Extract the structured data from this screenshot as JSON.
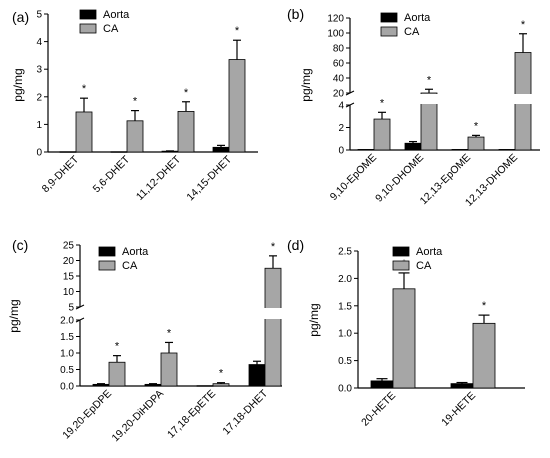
{
  "colors": {
    "aorta": "#000000",
    "ca": "#a6a6a6",
    "axis": "#000000"
  },
  "chart_data": [
    {
      "panel_label": "(a)",
      "type": "bar",
      "categories": [
        "8,9-DHET",
        "5,6-DHET",
        "11,12-DHET",
        "14,15-DHET"
      ],
      "ylabel": "pg/mg",
      "ylim": [
        0,
        5
      ],
      "yticks": [
        "0",
        "1",
        "2",
        "3",
        "4",
        "5"
      ],
      "series": [
        {
          "name": "Aorta",
          "values": [
            0.01,
            0.01,
            0.03,
            0.17
          ],
          "errors": [
            0.0,
            0.0,
            0.01,
            0.07
          ]
        },
        {
          "name": "CA",
          "values": [
            1.45,
            1.13,
            1.47,
            3.35
          ],
          "errors": [
            0.5,
            0.37,
            0.35,
            0.7
          ]
        }
      ],
      "significance": [
        "*",
        "*",
        "*",
        "*"
      ],
      "legend": "top-left"
    },
    {
      "panel_label": "(b)",
      "type": "bar",
      "categories": [
        "9,10-EpOME",
        "9,10-DHOME",
        "12,13-EpOME",
        "12,13-DHOME"
      ],
      "ylabel": "pg/mg",
      "y_break": true,
      "ylim_lower": [
        0,
        4
      ],
      "ylim_upper": [
        20,
        120
      ],
      "yticks_lower": [
        "0",
        "2",
        "4"
      ],
      "yticks_upper": [
        "20",
        "40",
        "60",
        "80",
        "100",
        "120"
      ],
      "series": [
        {
          "name": "Aorta",
          "values": [
            0.05,
            0.6,
            0.05,
            0.05
          ],
          "errors": [
            0.0,
            0.15,
            0.0,
            0.0
          ]
        },
        {
          "name": "CA",
          "values": [
            2.75,
            20.0,
            1.15,
            74.0
          ],
          "errors": [
            0.6,
            5.0,
            0.15,
            25.0
          ]
        }
      ],
      "significance": [
        "*",
        "*",
        "*",
        "*"
      ],
      "legend": "top-left"
    },
    {
      "panel_label": "(c)",
      "type": "bar",
      "categories": [
        "19,20-EpDPE",
        "19,20-DiHDPA",
        "17,18-EpETE",
        "17,18-DHET"
      ],
      "ylabel": "pg/mg",
      "y_break": true,
      "ylim_lower": [
        0,
        2
      ],
      "ylim_upper": [
        5,
        25
      ],
      "yticks_lower": [
        "0.0",
        "0.5",
        "1.0",
        "1.5",
        "2.0"
      ],
      "yticks_upper": [
        "5",
        "10",
        "15",
        "20",
        "25"
      ],
      "series": [
        {
          "name": "Aorta",
          "values": [
            0.05,
            0.05,
            0.01,
            0.65
          ],
          "errors": [
            0.02,
            0.02,
            0.0,
            0.1
          ]
        },
        {
          "name": "CA",
          "values": [
            0.72,
            1.0,
            0.07,
            17.5
          ],
          "errors": [
            0.2,
            0.32,
            0.03,
            4.0
          ]
        }
      ],
      "significance": [
        "*",
        "*",
        "*",
        "*"
      ],
      "legend": "top-left"
    },
    {
      "panel_label": "(d)",
      "type": "bar",
      "categories": [
        "20-HETE",
        "19-HETE"
      ],
      "ylabel": "pg/mg",
      "ylim": [
        0,
        2.5
      ],
      "yticks": [
        "0.0",
        "0.5",
        "1.0",
        "1.5",
        "2.0",
        "2.5"
      ],
      "series": [
        {
          "name": "Aorta",
          "values": [
            0.13,
            0.08
          ],
          "errors": [
            0.04,
            0.02
          ]
        },
        {
          "name": "CA",
          "values": [
            1.81,
            1.18
          ],
          "errors": [
            0.29,
            0.15
          ]
        }
      ],
      "significance": [
        "*",
        "*"
      ],
      "legend": "top-left"
    }
  ]
}
